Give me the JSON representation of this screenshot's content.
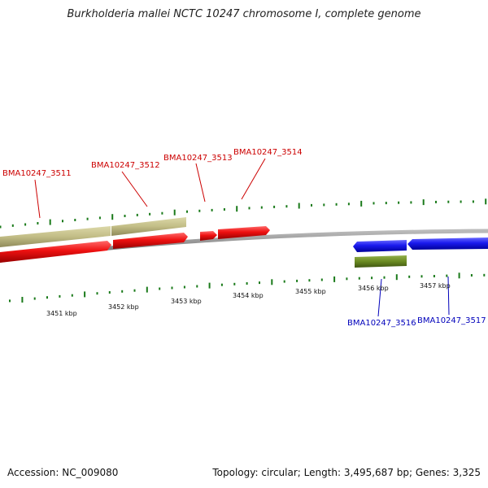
{
  "title": "Burkholderia mallei NCTC 10247 chromosome I, complete genome",
  "footer": {
    "accession": "Accession: NC_009080",
    "summary": "Topology: circular; Length: 3,495,687 bp; Genes: 3,325"
  },
  "colors": {
    "forward_cds": "#ee1111",
    "reverse_cds": "#1a1aee",
    "forward_gene": "#c2bd86",
    "reverse_gene": "#6a8a22",
    "forward_label": "#cc0000",
    "reverse_label": "#0000bb",
    "tick": "#1a7a1a",
    "backbone": "#888888"
  },
  "scale": {
    "tick_labels": [
      "3451 kbp",
      "3452 kbp",
      "3453 kbp",
      "3454 kbp",
      "3455 kbp",
      "3456 kbp",
      "3457 kbp"
    ]
  },
  "genes_forward": [
    {
      "label": "BMA10247_3511"
    },
    {
      "label": "BMA10247_3512"
    },
    {
      "label": "BMA10247_3513"
    },
    {
      "label": "BMA10247_3514"
    }
  ],
  "genes_reverse": [
    {
      "label": "BMA10247_3516"
    },
    {
      "label": "BMA10247_3517"
    }
  ]
}
